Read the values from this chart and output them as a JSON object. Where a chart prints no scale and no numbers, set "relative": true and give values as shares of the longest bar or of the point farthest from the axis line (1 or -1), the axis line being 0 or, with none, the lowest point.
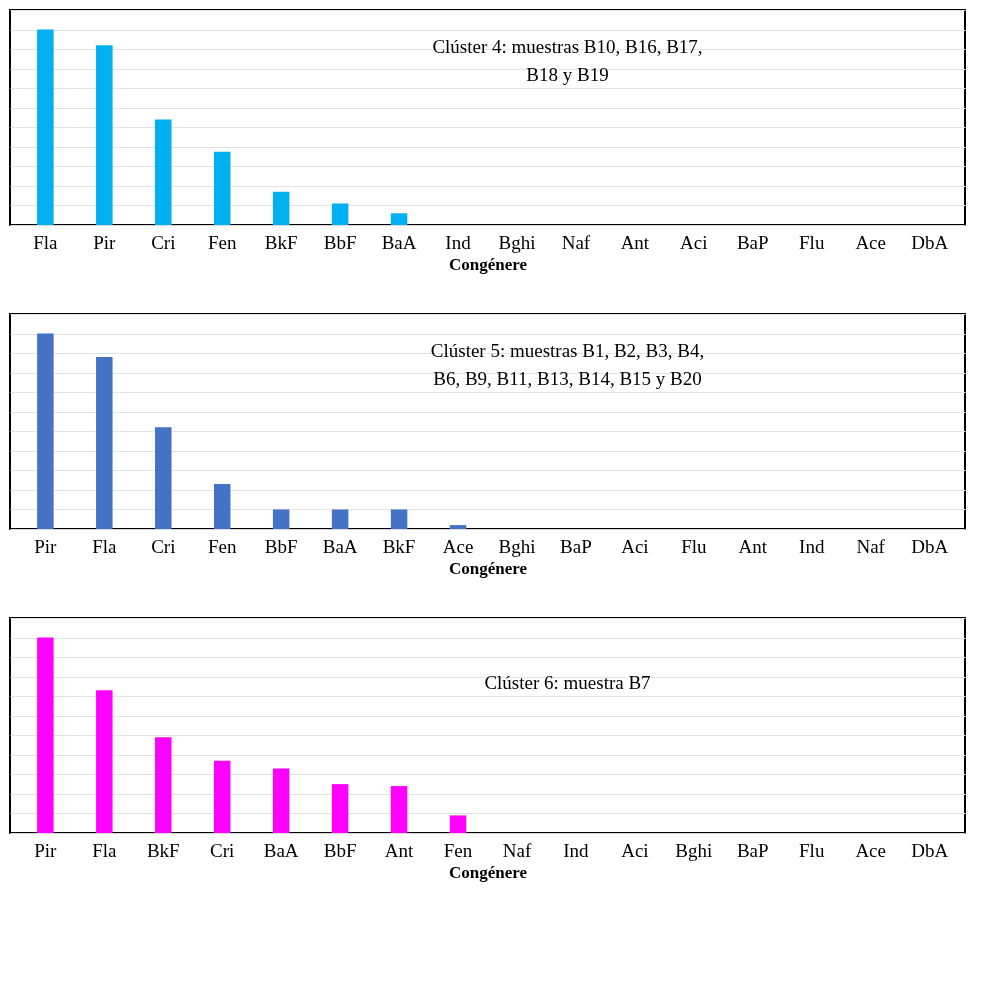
{
  "chart_data": [
    {
      "type": "bar",
      "relative": true,
      "title": "Clúster 4: muestras B10, B16, B17, B18 y B19",
      "xlabel": "Congénere",
      "grid": "y",
      "legend": false,
      "categories": [
        "Fla",
        "Pir",
        "Cri",
        "Fen",
        "BkF",
        "BbF",
        "BaA",
        "Ind",
        "Bghi",
        "Naf",
        "Ant",
        "Aci",
        "BaP",
        "Flu",
        "Ace",
        "DbA"
      ],
      "series": [
        {
          "color": "#00b0f0",
          "values": [
            1,
            0.92,
            0.54,
            0.375,
            0.17,
            0.11,
            0.06,
            0,
            0,
            0,
            0,
            0,
            0,
            0,
            0,
            0
          ]
        }
      ]
    },
    {
      "type": "bar",
      "relative": true,
      "title": "Clúster 5: muestras B1, B2, B3, B4, B6, B9, B11, B13, B14, B15 y B20",
      "xlabel": "Congénere",
      "grid": "y",
      "legend": false,
      "categories": [
        "Pir",
        "Fla",
        "Cri",
        "Fen",
        "BbF",
        "BaA",
        "BkF",
        "Ace",
        "Bghi",
        "BaP",
        "Aci",
        "Flu",
        "Ant",
        "Ind",
        "Naf",
        "DbA"
      ],
      "series": [
        {
          "color": "#4472c4",
          "values": [
            1,
            0.88,
            0.52,
            0.23,
            0.1,
            0.1,
            0.1,
            0.02,
            0,
            0,
            0,
            0,
            0,
            0,
            0,
            0
          ]
        }
      ]
    },
    {
      "type": "bar",
      "relative": true,
      "title": "Clúster 6: muestra B7",
      "xlabel": "Congénere",
      "grid": "y",
      "legend": false,
      "categories": [
        "Pir",
        "Fla",
        "BkF",
        "Cri",
        "BaA",
        "BbF",
        "Ant",
        "Fen",
        "Naf",
        "Ind",
        "Aci",
        "Bghi",
        "BaP",
        "Flu",
        "Ace",
        "DbA"
      ],
      "series": [
        {
          "color": "#ff00ff",
          "values": [
            1,
            0.73,
            0.49,
            0.37,
            0.33,
            0.25,
            0.24,
            0.09,
            0,
            0,
            0,
            0,
            0,
            0,
            0,
            0
          ]
        }
      ]
    }
  ]
}
